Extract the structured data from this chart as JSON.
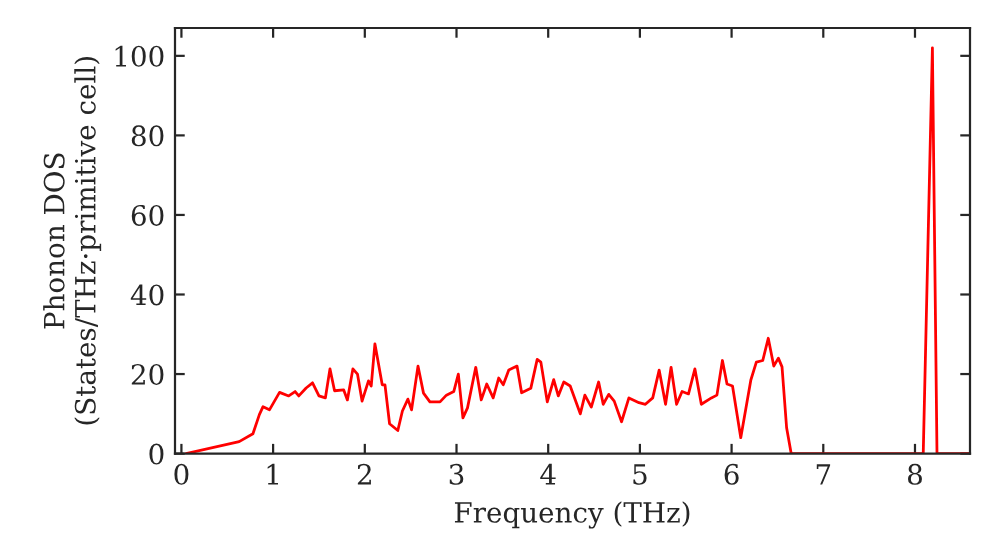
{
  "chart_data": {
    "type": "line",
    "xlabel": "Frequency (THz)",
    "ylabel": "Phonon DOS\n(States/THz·primitive cell)",
    "xlim": [
      -0.07,
      8.6
    ],
    "ylim": [
      0,
      107
    ],
    "xticks": [
      0,
      1,
      2,
      3,
      4,
      5,
      6,
      7,
      8
    ],
    "yticks": [
      0,
      20,
      40,
      60,
      80,
      100
    ],
    "grid": false,
    "legend": false,
    "series": [
      {
        "color": "#ff0000",
        "x": [
          0.05,
          0.63,
          0.78,
          0.85,
          0.89,
          0.96,
          1.07,
          1.17,
          1.24,
          1.28,
          1.36,
          1.43,
          1.5,
          1.57,
          1.62,
          1.67,
          1.77,
          1.81,
          1.87,
          1.92,
          1.97,
          2.04,
          2.07,
          2.11,
          2.19,
          2.22,
          2.27,
          2.36,
          2.41,
          2.47,
          2.51,
          2.58,
          2.64,
          2.71,
          2.82,
          2.89,
          2.97,
          3.02,
          3.07,
          3.12,
          3.21,
          3.27,
          3.33,
          3.4,
          3.46,
          3.51,
          3.57,
          3.66,
          3.71,
          3.81,
          3.88,
          3.92,
          3.99,
          4.06,
          4.11,
          4.17,
          4.24,
          4.35,
          4.4,
          4.47,
          4.55,
          4.6,
          4.66,
          4.72,
          4.8,
          4.88,
          4.99,
          5.06,
          5.14,
          5.21,
          5.28,
          5.34,
          5.4,
          5.46,
          5.53,
          5.6,
          5.67,
          5.78,
          5.84,
          5.9,
          5.95,
          6.01,
          6.1,
          6.21,
          6.27,
          6.34,
          6.4,
          6.46,
          6.51,
          6.55,
          6.6,
          6.65,
          8.09,
          8.19,
          8.24,
          8.6
        ],
        "values": [
          0,
          3,
          5,
          9.8,
          11.8,
          11,
          15.4,
          14.5,
          15.6,
          14.5,
          16.5,
          17.8,
          14.5,
          14,
          21.3,
          15.8,
          16,
          13.5,
          21.3,
          20,
          13.2,
          18.3,
          17,
          27.6,
          17.3,
          17.3,
          7.5,
          5.8,
          10.7,
          13.7,
          11,
          22,
          15.2,
          13,
          13,
          14.7,
          15.6,
          20,
          9,
          11.5,
          21.7,
          13.5,
          17.5,
          14,
          19,
          17.3,
          21,
          22,
          15.3,
          16.4,
          23.7,
          23,
          13,
          18.6,
          14.5,
          18,
          17,
          10,
          14.7,
          11.7,
          18,
          12.4,
          14.9,
          13.2,
          8,
          14,
          12.8,
          12.4,
          14,
          21,
          12.4,
          21.7,
          12.4,
          15.6,
          15,
          21.3,
          12.4,
          14,
          14.7,
          23.4,
          17.5,
          17,
          4,
          18.5,
          23,
          23.4,
          29,
          22,
          24,
          21.8,
          6.5,
          0,
          0,
          102,
          0,
          0
        ]
      }
    ]
  }
}
